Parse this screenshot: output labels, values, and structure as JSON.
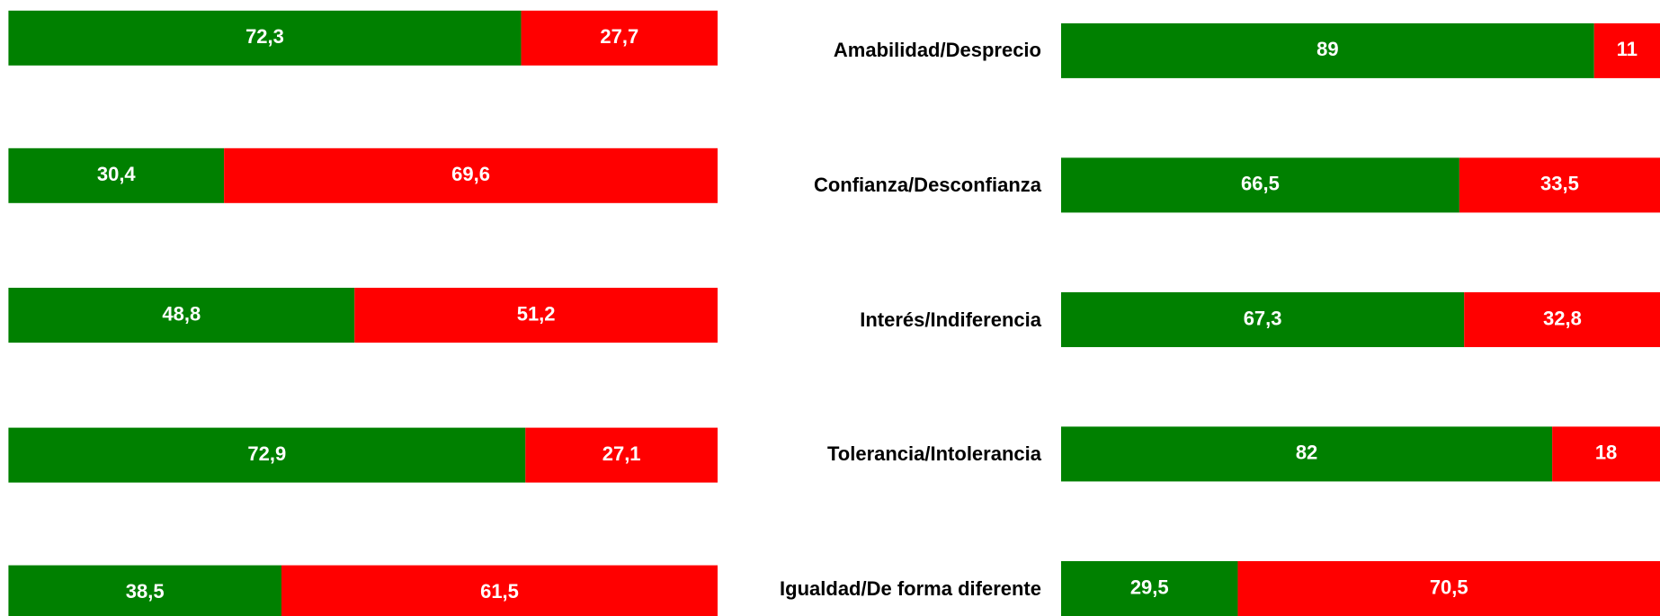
{
  "chart_data": [
    {
      "type": "stacked_barh",
      "categories": [
        null,
        null,
        null,
        null,
        null
      ],
      "xlim": [
        0,
        100
      ],
      "series": [
        {
          "color": "#008000",
          "values": [
            72.3,
            30.4,
            48.8,
            72.9,
            38.5
          ],
          "value_labels": [
            "72,3",
            "30,4",
            "48,8",
            "72,9",
            "38,5"
          ]
        },
        {
          "color": "#ff0000",
          "values": [
            27.7,
            69.6,
            51.2,
            27.1,
            61.5
          ],
          "value_labels": [
            "27,7",
            "69,6",
            "51,2",
            "27,1",
            "61,5"
          ]
        }
      ]
    },
    {
      "type": "stacked_barh",
      "categories": [
        "Amabilidad/Desprecio",
        "Confianza/Desconfianza",
        "Interés/Indiferencia",
        "Tolerancia/Intolerancia",
        "Igualdad/De forma diferente"
      ],
      "xlim": [
        0,
        100
      ],
      "series": [
        {
          "color": "#008000",
          "values": [
            89,
            66.5,
            67.3,
            82,
            29.5
          ],
          "value_labels": [
            "89",
            "66,5",
            "67,3",
            "82",
            "29,5"
          ]
        },
        {
          "color": "#ff0000",
          "values": [
            11,
            33.5,
            32.8,
            18,
            70.5
          ],
          "value_labels": [
            "11",
            "33,5",
            "32,8",
            "18",
            "70,5"
          ]
        }
      ]
    }
  ]
}
